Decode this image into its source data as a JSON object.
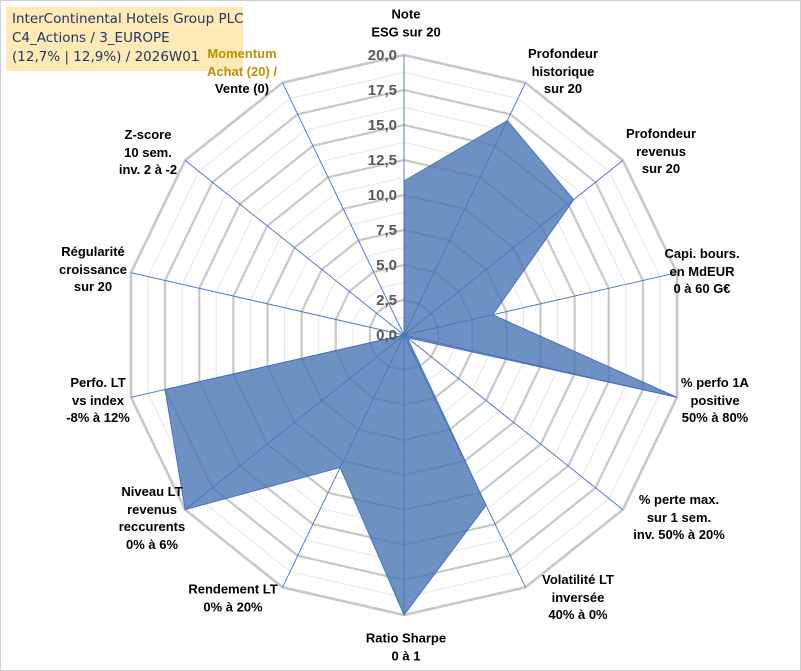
{
  "title": {
    "line1": "InterContinental Hotels Group PLC",
    "line2": "C4_Actions / 3_EUROPE",
    "line3": "(12,7% | 12,9%) / 2026W01"
  },
  "chart_data": {
    "type": "radar",
    "scale": {
      "min": 0,
      "max": 20,
      "step": 2.5
    },
    "tick_labels": [
      "0,0",
      "2,5",
      "5,0",
      "7,5",
      "10,0",
      "12,5",
      "15,0",
      "17,5",
      "20,0"
    ],
    "axes": [
      {
        "label_lines": [
          "Note",
          "ESG sur 20"
        ],
        "value": 11.0
      },
      {
        "label_lines": [
          "Profondeur",
          "historique",
          "sur 20"
        ],
        "value": 17.0
      },
      {
        "label_lines": [
          "Profondeur",
          "revenus",
          "sur 20"
        ],
        "value": 15.5
      },
      {
        "label_lines": [
          "Capi. bours.",
          "en MdEUR",
          "0 à 60 G€"
        ],
        "value": 6.5
      },
      {
        "label_lines": [
          "% perfo 1A",
          "positive",
          "50% à 80%"
        ],
        "value": 20.0
      },
      {
        "label_lines": [
          "% perte max.",
          "sur 1 sem.",
          "inv. 50% à 20%"
        ],
        "value": 0.3
      },
      {
        "label_lines": [
          "Volatilité LT",
          "inversée",
          "40% à 0%"
        ],
        "value": 13.5
      },
      {
        "label_lines": [
          "Ratio Sharpe",
          "0 à 1"
        ],
        "value": 20.0
      },
      {
        "label_lines": [
          "Rendement LT",
          "0% à 20%"
        ],
        "value": 10.5
      },
      {
        "label_lines": [
          "Niveau LT",
          "revenus",
          "reccurents",
          "0% à 6%"
        ],
        "value": 20.0
      },
      {
        "label_lines": [
          "Perfo. LT",
          "vs index",
          "-8% à 12%"
        ],
        "value": 17.5
      },
      {
        "label_lines": [
          "Régularité",
          "croissance",
          "sur 20"
        ],
        "value": 0.0
      },
      {
        "label_lines": [
          "Z-score",
          "10 sem.",
          "inv. 2 à -2"
        ],
        "value": 0.0
      },
      {
        "label_lines": [
          "Momentum",
          "Achat (20) /",
          "Vente (0)"
        ],
        "value": 0.0
      }
    ],
    "series": [
      {
        "name": "InterContinental Hotels Group PLC",
        "color": "#4a76b4"
      }
    ],
    "colors": {
      "grid_major": "#c8c8c8",
      "grid_minor": "#e6e6e6",
      "spoke": "#4472c4",
      "fill": "#4a76b4",
      "fill_opacity": 0.8,
      "momentum_label": "#bf9000"
    }
  }
}
